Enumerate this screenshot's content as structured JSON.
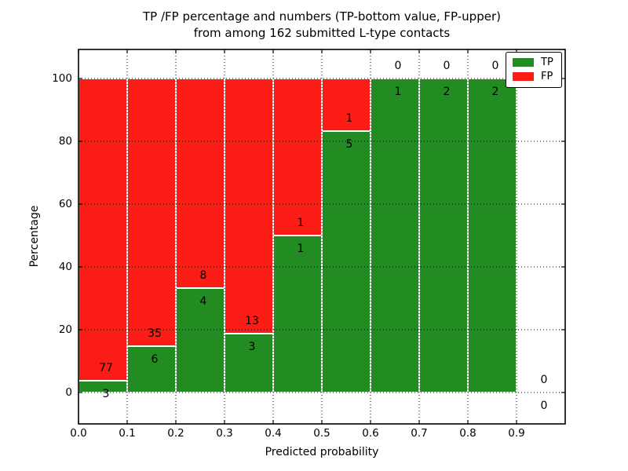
{
  "title_lines": [
    "TP /FP percentage and numbers (TP-bottom value, FP-upper)",
    "from among 162 submitted L-type contacts"
  ],
  "chart_data": {
    "type": "bar",
    "subtype": "stacked-percentage-histogram",
    "title": "TP /FP percentage and numbers (TP-bottom value, FP-upper) from among 162 submitted L-type contacts",
    "xlabel": "Predicted probability",
    "ylabel": "Percentage",
    "total_contacts": 162,
    "bin_edges": [
      0.0,
      0.1,
      0.2,
      0.3,
      0.4,
      0.5,
      0.6,
      0.7,
      0.8,
      0.9,
      1.0
    ],
    "categories": [
      "0.0-0.1",
      "0.1-0.2",
      "0.2-0.3",
      "0.3-0.4",
      "0.4-0.5",
      "0.5-0.6",
      "0.6-0.7",
      "0.7-0.8",
      "0.8-0.9",
      "0.9-1.0"
    ],
    "series": [
      {
        "name": "TP",
        "color": "#228B22",
        "counts": [
          3,
          6,
          4,
          3,
          1,
          5,
          1,
          2,
          2,
          0
        ]
      },
      {
        "name": "FP",
        "color": "#FB1D15",
        "counts": [
          77,
          35,
          8,
          13,
          1,
          1,
          0,
          0,
          0,
          0
        ]
      }
    ],
    "tp_percent_by_bin": [
      3.75,
      14.63,
      33.33,
      18.75,
      50.0,
      83.33,
      100.0,
      100.0,
      100.0,
      0.0
    ],
    "xticks": [
      "0.0",
      "0.1",
      "0.2",
      "0.3",
      "0.4",
      "0.5",
      "0.6",
      "0.7",
      "0.8",
      "0.9"
    ],
    "yticks": [
      "0",
      "20",
      "40",
      "60",
      "80",
      "100"
    ],
    "xlim": [
      0.0,
      1.0
    ],
    "ylim": [
      -10,
      109
    ],
    "grid": "dotted",
    "legend_position": "upper right",
    "axis_color": "#000000",
    "background_color": "#ffffff"
  }
}
